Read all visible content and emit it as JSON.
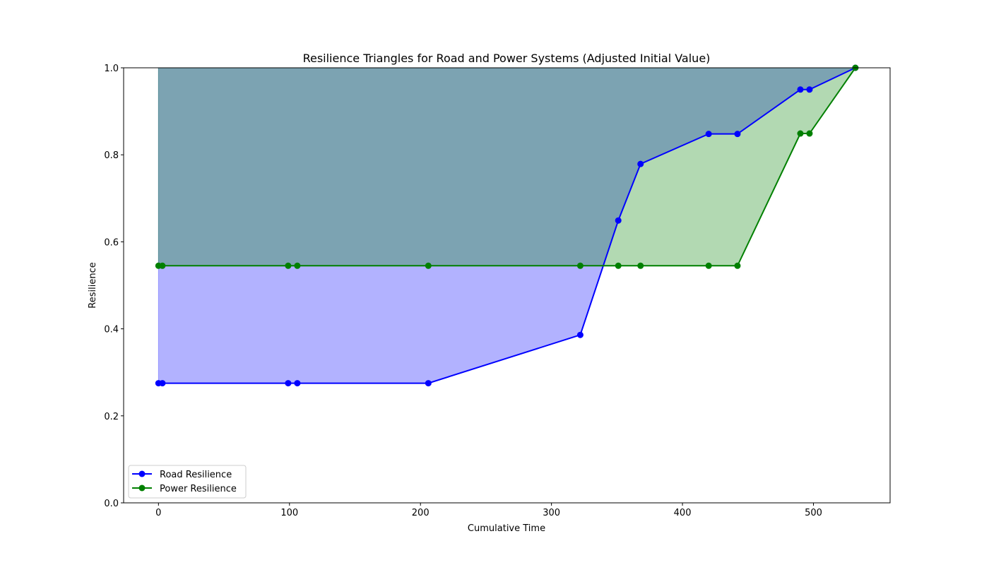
{
  "chart_data": {
    "type": "line",
    "title": "Resilience Triangles for Road and Power Systems (Adjusted Initial Value)",
    "xlabel": "Cumulative Time",
    "ylabel": "Resilience",
    "xlim": [
      -26.6,
      558.5
    ],
    "ylim": [
      0,
      1
    ],
    "xticks": [
      0,
      100,
      200,
      300,
      400,
      500
    ],
    "yticks": [
      0.0,
      0.2,
      0.4,
      0.6,
      0.8,
      1.0
    ],
    "xtick_labels": [
      "0",
      "100",
      "200",
      "300",
      "400",
      "500"
    ],
    "ytick_labels": [
      "0.0",
      "0.2",
      "0.4",
      "0.6",
      "0.8",
      "1.0"
    ],
    "grid": false,
    "legend_placement": "lower-left",
    "fill_between_curve_and": 1.0,
    "series": [
      {
        "name": "Road Resilience",
        "color": "#0000ff",
        "fill_color": "#0000ff",
        "fill_opacity": 0.3,
        "marker": "circle",
        "x": [
          0,
          3,
          99,
          106,
          206,
          322,
          351,
          368,
          420,
          442,
          490,
          497,
          532
        ],
        "y": [
          0.275,
          0.275,
          0.275,
          0.275,
          0.275,
          0.386,
          0.649,
          0.779,
          0.848,
          0.848,
          0.95,
          0.95,
          1.0
        ]
      },
      {
        "name": "Power Resilience",
        "color": "#008000",
        "fill_color": "#008000",
        "fill_opacity": 0.3,
        "marker": "circle",
        "x": [
          0,
          3,
          99,
          106,
          206,
          322,
          351,
          368,
          420,
          442,
          490,
          497,
          532
        ],
        "y": [
          0.545,
          0.545,
          0.545,
          0.545,
          0.545,
          0.545,
          0.545,
          0.545,
          0.545,
          0.545,
          0.849,
          0.849,
          1.0
        ]
      }
    ]
  }
}
